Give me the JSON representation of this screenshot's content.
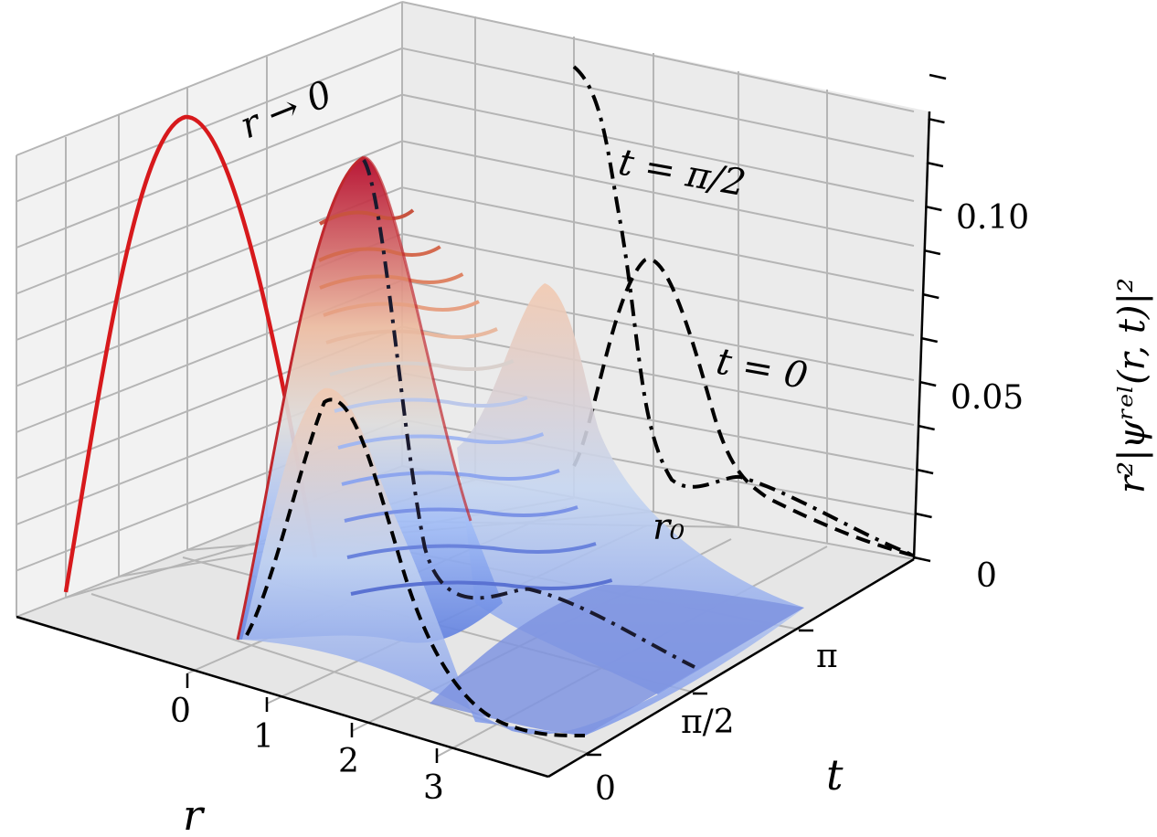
{
  "chart_data": {
    "type": "surface",
    "title": "",
    "xlabel": "r",
    "ylabel": "t",
    "zlabel": "r²|ψʳᵉˡ(r, t)|²",
    "x_ticks": [
      "0",
      "1",
      "2",
      "3"
    ],
    "y_ticks": [
      "0",
      "π/2",
      "π"
    ],
    "z_ticks": [
      "0",
      "0.05",
      "0.10"
    ],
    "xlim": [
      -1.7,
      4
    ],
    "ylim": [
      0,
      4.2
    ],
    "zlim": [
      0,
      0.12
    ],
    "colormap": "coolwarm",
    "grid": true,
    "surface_peaks": [
      {
        "t": 0.0,
        "r": 0.95,
        "z": 0.067
      },
      {
        "t": 1.57,
        "r": 0.0,
        "z": 0.118
      },
      {
        "t": 3.14,
        "r": 1.0,
        "z": 0.072
      }
    ],
    "projections": [
      {
        "label": "r → 0",
        "plane": "r-wall",
        "style": "solid",
        "color": "#d7191c",
        "description_values": [
          [
            0.0,
            0.0
          ],
          [
            1.57,
            0.118
          ],
          [
            3.14,
            0.0
          ]
        ]
      },
      {
        "label": "t = π/2",
        "plane": "t-wall",
        "style": "dash-dot",
        "color": "#000000",
        "x": [
          0.0,
          0.5,
          1.0,
          1.5,
          2.0,
          2.5,
          3.0,
          4.0
        ],
        "z": [
          0.118,
          0.09,
          0.05,
          0.025,
          0.018,
          0.02,
          0.012,
          0.0
        ]
      },
      {
        "label": "t = 0",
        "plane": "t-wall",
        "style": "dashed",
        "color": "#000000",
        "x": [
          0.0,
          0.5,
          0.95,
          1.5,
          2.0,
          2.5,
          3.0,
          4.0
        ],
        "z": [
          0.003,
          0.035,
          0.067,
          0.045,
          0.02,
          0.012,
          0.006,
          0.0
        ]
      }
    ],
    "annotations": [
      "r → 0",
      "t = π/2",
      "t = 0",
      "r₀"
    ],
    "series_colors": {
      "red": "#d7191c",
      "blue": "#5b74d6",
      "black": "#000000"
    }
  }
}
